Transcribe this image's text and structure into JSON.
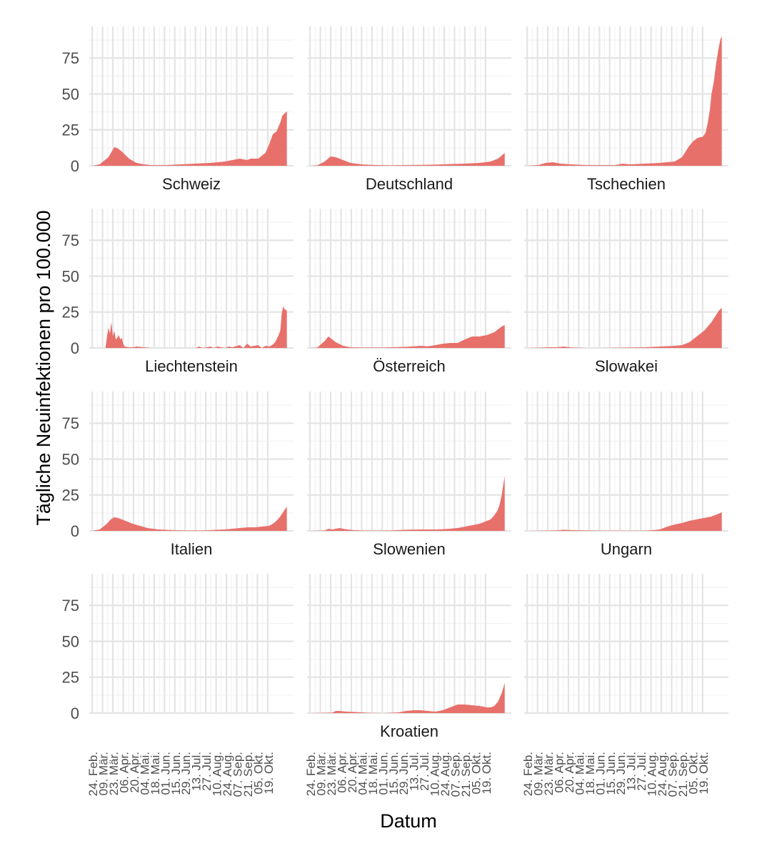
{
  "chart_data": {
    "type": "area",
    "xlabel": "Datum",
    "ylabel": "Tägliche Neuinfektionen pro 100.000",
    "ylim": [
      0,
      97
    ],
    "yticks": [
      0,
      25,
      50,
      75
    ],
    "ytick_labels": [
      "0",
      "25",
      "50",
      "75"
    ],
    "x_range_days": [
      -4,
      273
    ],
    "x_tick_labels": [
      "24. Feb.",
      "09. Mär.",
      "23. Mär.",
      "06. Apr.",
      "20. Apr.",
      "04. Mai.",
      "18. Mai.",
      "01. Jun.",
      "15. Jun.",
      "29. Jun.",
      "13. Jul.",
      "27. Jul.",
      "10. Aug.",
      "24. Aug.",
      "07. Sep.",
      "21. Sep.",
      "05. Okt.",
      "19. Okt."
    ],
    "x_tick_days": [
      0,
      14,
      28,
      42,
      56,
      70,
      84,
      98,
      112,
      126,
      140,
      154,
      168,
      182,
      196,
      210,
      224,
      238
    ],
    "fill_color": "#E8706B",
    "grid": true,
    "panels": [
      {
        "name": "Schweiz",
        "day": [
          0,
          10,
          22,
          30,
          35,
          40,
          50,
          60,
          70,
          80,
          100,
          120,
          140,
          160,
          180,
          200,
          210,
          215,
          225,
          235,
          240,
          245,
          250,
          255,
          258,
          262,
          264
        ],
        "value": [
          0,
          1,
          6,
          13,
          12,
          10,
          5,
          2,
          1,
          0.5,
          0.5,
          1,
          1.5,
          2,
          3,
          5,
          4,
          5,
          5,
          9,
          15,
          22,
          24,
          30,
          35,
          37,
          38
        ]
      },
      {
        "name": "Deutschland",
        "day": [
          0,
          10,
          20,
          28,
          35,
          45,
          55,
          70,
          90,
          110,
          130,
          150,
          170,
          190,
          210,
          230,
          245,
          255,
          262,
          264
        ],
        "value": [
          0,
          0.3,
          3,
          6.5,
          6,
          4,
          2,
          1,
          0.5,
          0.3,
          0.5,
          0.6,
          0.8,
          1.2,
          1.5,
          2,
          3,
          5,
          8,
          9
        ]
      },
      {
        "name": "Tschechien",
        "day": [
          0,
          15,
          25,
          35,
          45,
          60,
          80,
          100,
          120,
          130,
          140,
          160,
          180,
          200,
          210,
          215,
          220,
          225,
          230,
          235,
          238,
          242,
          245,
          248,
          250,
          253,
          256,
          259,
          262,
          264
        ],
        "value": [
          0,
          0.5,
          2,
          2.5,
          1.5,
          1,
          0.5,
          0.5,
          0.5,
          1.5,
          1,
          1.5,
          2,
          3,
          6,
          10,
          14,
          17,
          19,
          20,
          20,
          23,
          30,
          40,
          50,
          58,
          70,
          80,
          88,
          90
        ]
      },
      {
        "name": "Liechtenstein",
        "day": [
          0,
          18,
          20,
          22,
          24,
          26,
          28,
          30,
          32,
          34,
          36,
          38,
          40,
          42,
          44,
          50,
          56,
          60,
          70,
          80,
          100,
          140,
          145,
          150,
          160,
          165,
          170,
          180,
          185,
          190,
          200,
          205,
          210,
          215,
          220,
          225,
          230,
          235,
          240,
          244,
          248,
          252,
          255,
          257,
          259,
          261,
          264
        ],
        "value": [
          0,
          0,
          8,
          14,
          10,
          18,
          8,
          12,
          6,
          7,
          9,
          6,
          7,
          3,
          1,
          0.5,
          0.5,
          1,
          0.5,
          0,
          0,
          0,
          1,
          0,
          1,
          0,
          1,
          0,
          1,
          0.5,
          2,
          0,
          3,
          1,
          1.5,
          2,
          0,
          1.5,
          1,
          2,
          4,
          8,
          12,
          24,
          29,
          27,
          26
        ]
      },
      {
        "name": "Österreich",
        "day": [
          0,
          10,
          20,
          25,
          30,
          35,
          45,
          55,
          70,
          100,
          130,
          150,
          160,
          170,
          180,
          190,
          200,
          210,
          220,
          230,
          240,
          250,
          255,
          260,
          264
        ],
        "value": [
          0,
          0.3,
          5,
          8,
          6,
          4,
          1.5,
          0.5,
          0.3,
          0.3,
          0.8,
          1.5,
          1.2,
          2,
          3,
          3.5,
          3.5,
          6,
          8,
          8,
          9,
          11,
          13,
          15,
          16
        ]
      },
      {
        "name": "Slowakei",
        "day": [
          0,
          20,
          30,
          40,
          50,
          60,
          80,
          100,
          120,
          140,
          160,
          180,
          200,
          210,
          220,
          230,
          240,
          245,
          250,
          255,
          260,
          264
        ],
        "value": [
          0,
          0.3,
          0.5,
          0.5,
          1,
          0.3,
          0,
          0,
          0.2,
          0.3,
          0.5,
          1,
          1.5,
          2,
          4,
          8,
          12,
          15,
          18,
          22,
          26,
          28
        ]
      },
      {
        "name": "Italien",
        "day": [
          0,
          10,
          20,
          25,
          30,
          35,
          45,
          55,
          65,
          75,
          90,
          110,
          130,
          150,
          160,
          170,
          180,
          190,
          200,
          210,
          220,
          230,
          240,
          245,
          250,
          255,
          260,
          264
        ],
        "value": [
          0,
          1,
          5,
          8,
          9.5,
          9,
          7,
          5,
          3.5,
          2,
          1,
          0.5,
          0.3,
          0.3,
          0.5,
          0.8,
          1,
          1.5,
          2,
          2.5,
          2.5,
          3,
          3.5,
          5,
          7,
          10,
          14,
          17
        ]
      },
      {
        "name": "Slowenien",
        "day": [
          0,
          20,
          25,
          30,
          40,
          50,
          60,
          70,
          90,
          110,
          130,
          150,
          170,
          180,
          190,
          200,
          210,
          220,
          230,
          235,
          240,
          245,
          250,
          254,
          257,
          260,
          262,
          264
        ],
        "value": [
          0,
          0.3,
          1.5,
          1,
          2,
          1,
          0.5,
          0.3,
          0.2,
          0.3,
          0.8,
          1,
          1,
          1.2,
          1.5,
          2,
          3,
          4,
          5,
          6,
          7,
          8,
          11,
          14,
          18,
          25,
          32,
          38
        ]
      },
      {
        "name": "Ungarn",
        "day": [
          0,
          40,
          50,
          60,
          80,
          100,
          140,
          160,
          170,
          180,
          190,
          200,
          210,
          220,
          230,
          240,
          245,
          250,
          255,
          260,
          264
        ],
        "value": [
          0,
          0.3,
          0.8,
          0.5,
          0.3,
          0.2,
          0.1,
          0.2,
          0.5,
          1,
          3,
          4.5,
          5.5,
          7,
          8,
          9,
          9.5,
          10,
          11,
          12,
          13
        ]
      },
      {
        "name": "",
        "day": [],
        "value": []
      },
      {
        "name": "Kroatien",
        "day": [
          0,
          30,
          35,
          40,
          50,
          60,
          70,
          80,
          100,
          120,
          130,
          140,
          150,
          160,
          170,
          180,
          190,
          200,
          210,
          220,
          230,
          240,
          245,
          250,
          255,
          260,
          264
        ],
        "value": [
          0,
          0.3,
          1.5,
          1.5,
          1,
          0.8,
          0.5,
          0.2,
          0,
          0.5,
          1.5,
          2,
          2,
          1.5,
          1,
          2,
          4,
          6,
          6,
          5.5,
          5,
          4,
          4,
          5,
          8,
          14,
          21
        ]
      },
      {
        "name": "",
        "day": [],
        "value": []
      }
    ]
  }
}
